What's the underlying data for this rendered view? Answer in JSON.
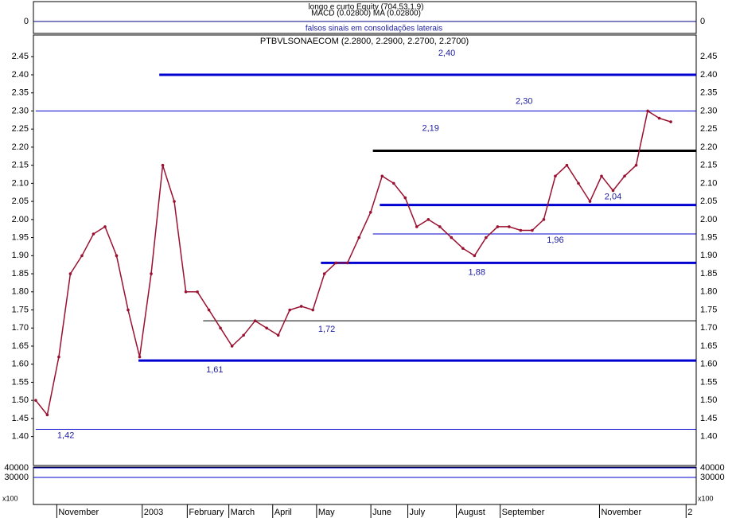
{
  "chart_data": {
    "type": "line",
    "title": "PTBVLSONAECOM (2.2800, 2.2900, 2.2700, 2.2700)",
    "top_panel": {
      "title": "longo e curto Equity (704.53,1.9)",
      "subtitle": "MACD (0.02800) MA (0.02800)",
      "annotation": "falsos sinais em consolidações laterais",
      "yticks": [
        0
      ]
    },
    "x": [
      0,
      1,
      2,
      3,
      4,
      5,
      6,
      7,
      8,
      9,
      10,
      11,
      12,
      13,
      14,
      15,
      16,
      17,
      18,
      19,
      20,
      21,
      22,
      23,
      24,
      25,
      26,
      27,
      28,
      29,
      30,
      31,
      32,
      33,
      34,
      35,
      36,
      37,
      38,
      39,
      40,
      41,
      42,
      43,
      44,
      45,
      46,
      47,
      48,
      49,
      50,
      51,
      52,
      53,
      54,
      55
    ],
    "series": [
      {
        "name": "PTBVLSONAECOM",
        "color": "#9a1030",
        "values": [
          1.5,
          1.46,
          1.62,
          1.85,
          1.9,
          1.96,
          1.98,
          1.9,
          1.75,
          1.62,
          1.85,
          2.15,
          2.05,
          1.8,
          1.8,
          1.75,
          1.7,
          1.65,
          1.68,
          1.72,
          1.7,
          1.68,
          1.75,
          1.76,
          1.75,
          1.85,
          1.88,
          1.88,
          1.95,
          2.02,
          2.12,
          2.1,
          2.06,
          1.98,
          2.0,
          1.98,
          1.95,
          1.92,
          1.9,
          1.95,
          1.98,
          1.98,
          1.97,
          1.97,
          2.0,
          2.12,
          2.15,
          2.1,
          2.05,
          2.12,
          2.08,
          2.12,
          2.15,
          2.3,
          2.28,
          2.27
        ]
      }
    ],
    "levels": [
      {
        "value": 2.4,
        "label": "2,40",
        "color": "#0000d0",
        "style": "thick"
      },
      {
        "value": 2.3,
        "label": "2,30",
        "color": "#0000d0",
        "style": "thin"
      },
      {
        "value": 2.19,
        "label": "2,19",
        "color": "#000000",
        "style": "thick"
      },
      {
        "value": 2.04,
        "label": "2,04",
        "color": "#0000d0",
        "style": "thick"
      },
      {
        "value": 1.96,
        "label": "1,96",
        "color": "#0000d0",
        "style": "thin"
      },
      {
        "value": 1.88,
        "label": "1,88",
        "color": "#0000d0",
        "style": "thick"
      },
      {
        "value": 1.72,
        "label": "1,72",
        "color": "#000000",
        "style": "thin"
      },
      {
        "value": 1.61,
        "label": "1,61",
        "color": "#0000d0",
        "style": "thick"
      },
      {
        "value": 1.42,
        "label": "1,42",
        "color": "#0000d0",
        "style": "thin"
      }
    ],
    "xlim": [
      -0.2,
      57.2
    ],
    "ylim": [
      1.32,
      2.51
    ],
    "yticks": [
      2.45,
      {
        "value": 2.4,
        "label": "2.40"
      },
      2.35,
      {
        "value": 2.3,
        "label": "2.30"
      },
      2.25,
      {
        "value": 2.2,
        "label": "2.20"
      },
      2.15,
      {
        "value": 2.1,
        "label": "2.10"
      },
      2.05,
      {
        "value": 2.0,
        "label": "2.00"
      },
      1.95,
      {
        "value": 1.9,
        "label": "1.90"
      },
      1.85,
      {
        "value": 1.8,
        "label": "1.80"
      },
      1.75,
      {
        "value": 1.7,
        "label": "1.70"
      },
      1.65,
      {
        "value": 1.6,
        "label": "1.60"
      },
      1.55,
      {
        "value": 1.5,
        "label": "1.50"
      },
      1.45,
      {
        "value": 1.4,
        "label": "1.40"
      }
    ],
    "xticks": [
      {
        "value": 2.1,
        "label": "November"
      },
      {
        "value": 9.5,
        "label": "2003"
      },
      {
        "value": 13.4,
        "label": "February"
      },
      {
        "value": 17,
        "label": "March"
      },
      {
        "value": 20.8,
        "label": "April"
      },
      {
        "value": 24.6,
        "label": "May"
      },
      {
        "value": 29.3,
        "label": "June"
      },
      {
        "value": 32.5,
        "label": "July"
      },
      {
        "value": 36.7,
        "label": "August"
      },
      {
        "value": 40.5,
        "label": "September"
      },
      {
        "value": 49.1,
        "label": "November"
      },
      {
        "value": 56.6,
        "label": "2"
      }
    ],
    "bottom_panel": {
      "unit": "x100",
      "yticks": [
        40000,
        30000
      ]
    }
  }
}
